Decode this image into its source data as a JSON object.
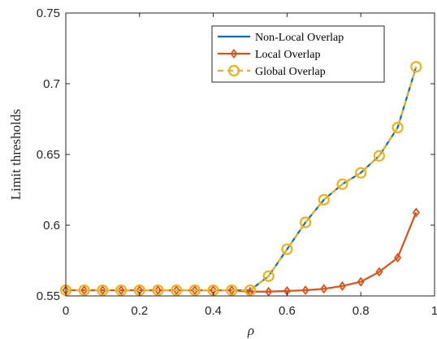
{
  "chart_data": {
    "type": "line",
    "xlabel": "ρ",
    "ylabel": "Limit thresholds",
    "xlim": [
      0,
      1
    ],
    "ylim": [
      0.55,
      0.75
    ],
    "xticks": [
      0,
      0.2,
      0.4,
      0.6,
      0.8,
      1
    ],
    "xtick_labels": [
      "0",
      "0.2",
      "0.4",
      "0.6",
      "0.8",
      "1"
    ],
    "yticks": [
      0.55,
      0.6,
      0.65,
      0.7,
      0.75
    ],
    "ytick_labels": [
      "0.55",
      "0.6",
      "0.65",
      "0.7",
      "0.75"
    ],
    "grid": false,
    "legend_position": "top-right",
    "x": [
      0,
      0.05,
      0.1,
      0.15,
      0.2,
      0.25,
      0.3,
      0.35,
      0.4,
      0.45,
      0.5,
      0.55,
      0.6,
      0.65,
      0.7,
      0.75,
      0.8,
      0.85,
      0.9,
      0.95
    ],
    "series": [
      {
        "name": "Non-Local Overlap",
        "color": "#0072BD",
        "marker": "none",
        "style": "solid",
        "values": [
          0.554,
          0.554,
          0.554,
          0.554,
          0.554,
          0.554,
          0.554,
          0.554,
          0.554,
          0.554,
          0.554,
          0.564,
          0.583,
          0.602,
          0.618,
          0.629,
          0.637,
          0.649,
          0.669,
          0.712
        ]
      },
      {
        "name": "Local Overlap",
        "color": "#D95319",
        "marker": "diamond",
        "style": "solid",
        "values": [
          0.554,
          0.554,
          0.554,
          0.554,
          0.554,
          0.554,
          0.554,
          0.554,
          0.554,
          0.554,
          0.553,
          0.553,
          0.5535,
          0.554,
          0.555,
          0.557,
          0.56,
          0.567,
          0.577,
          0.609
        ]
      },
      {
        "name": "Global Overlap",
        "color": "#EDB120",
        "marker": "circle",
        "style": "dashed",
        "values": [
          0.554,
          0.554,
          0.554,
          0.554,
          0.554,
          0.554,
          0.554,
          0.554,
          0.554,
          0.554,
          0.554,
          0.564,
          0.583,
          0.602,
          0.618,
          0.629,
          0.637,
          0.649,
          0.669,
          0.712
        ]
      }
    ]
  }
}
